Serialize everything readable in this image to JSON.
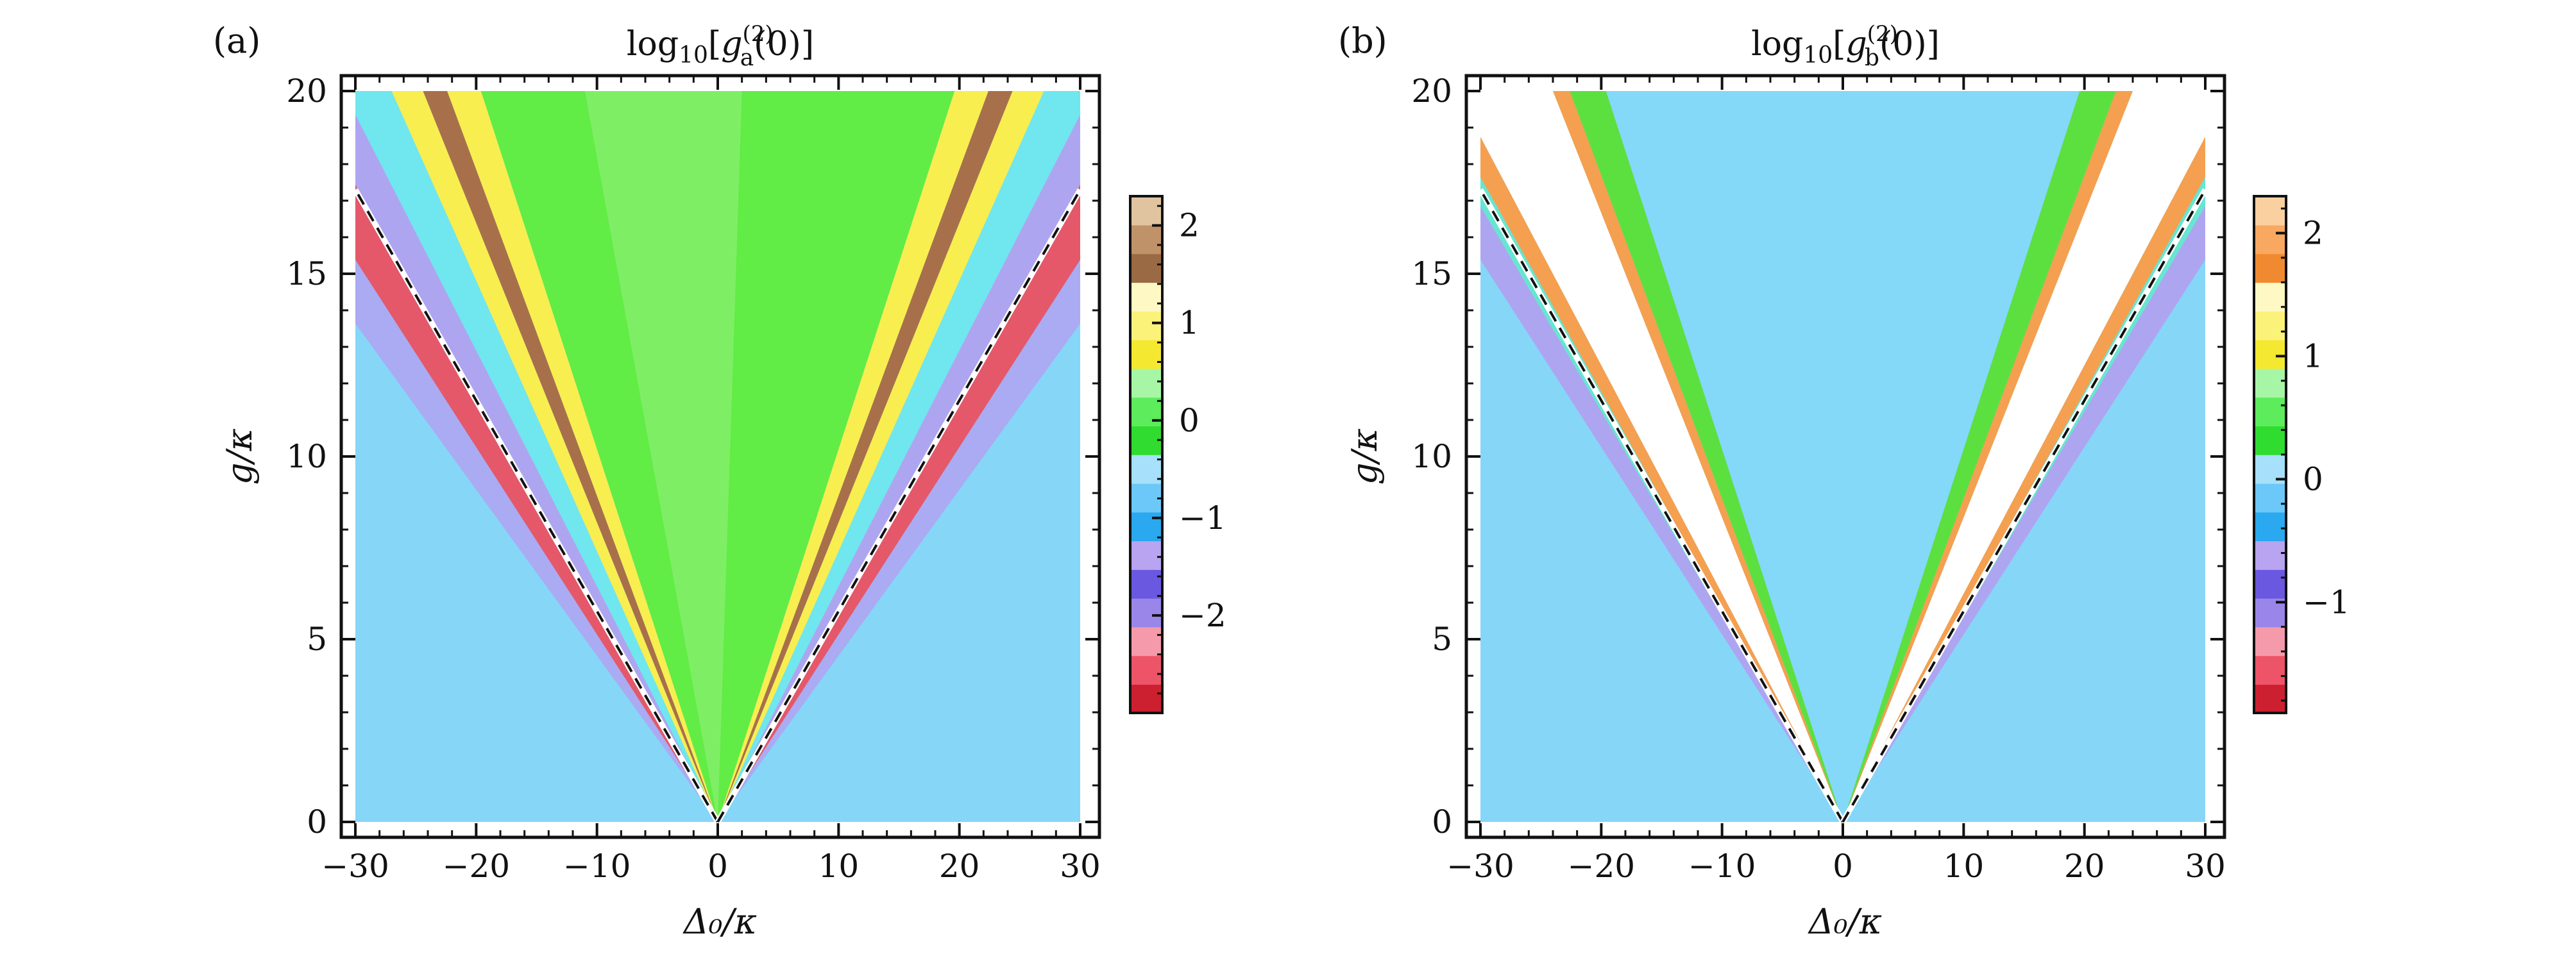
{
  "chart_data": [
    {
      "type": "heatmap",
      "panel_label": "(a)",
      "title": "log₁₀[g_a^(2)(0)]",
      "title_parts": {
        "pre": "log",
        "sub10": "10",
        "open": "[",
        "g": "g",
        "sup": "(2)",
        "sub": "a",
        "post": "(0)]"
      },
      "xlabel": "Δ₀/κ",
      "ylabel": "g/κ",
      "xlim": [
        -30,
        30
      ],
      "ylim": [
        0,
        20
      ],
      "xticks": [
        -30,
        -20,
        -10,
        0,
        10,
        20,
        30
      ],
      "xtick_labels": [
        "−30",
        "−20",
        "−10",
        "0",
        "10",
        "20",
        "30"
      ],
      "yticks": [
        0,
        5,
        10,
        15,
        20
      ],
      "ytick_labels": [
        "0",
        "5",
        "10",
        "15",
        "20"
      ],
      "dashed_lines": [
        {
          "x": [
            0,
            -30
          ],
          "y": [
            0,
            17.3
          ]
        },
        {
          "x": [
            0,
            30
          ],
          "y": [
            0,
            17.3
          ]
        }
      ],
      "colorbar": {
        "ticks": [
          2,
          1,
          0,
          -1,
          -2
        ],
        "tick_labels": [
          "2",
          "1",
          "0",
          "−1",
          "−2"
        ],
        "range": [
          -3,
          2.3
        ],
        "colors": [
          "#cc2030",
          "#ee5468",
          "#f59aaa",
          "#9a86e8",
          "#6a58e0",
          "#b8a4f0",
          "#2aa8f0",
          "#6cc8f8",
          "#a6e0fa",
          "#30dc30",
          "#5cec5c",
          "#a6f6a6",
          "#f4e830",
          "#fbf27a",
          "#fdf8c4",
          "#9a6a44",
          "#c0926a",
          "#e0c4a0"
        ]
      },
      "regions": {
        "outer": "#86d6f8",
        "band_purple": "#b59cf0",
        "band_red": "#ee4a5a",
        "yellow": "#f8ee50",
        "brown": "#a8704a",
        "center": "#62ec46"
      }
    },
    {
      "type": "heatmap",
      "panel_label": "(b)",
      "title": "log₁₀[g_b^(2)(0)]",
      "title_parts": {
        "pre": "log",
        "sub10": "10",
        "open": "[",
        "g": "g",
        "sup": "(2)",
        "sub": "b",
        "post": "(0)]"
      },
      "xlabel": "Δ₀/κ",
      "ylabel": "g/κ",
      "xlim": [
        -30,
        30
      ],
      "ylim": [
        0,
        20
      ],
      "xticks": [
        -30,
        -20,
        -10,
        0,
        10,
        20,
        30
      ],
      "xtick_labels": [
        "−30",
        "−20",
        "−10",
        "0",
        "10",
        "20",
        "30"
      ],
      "yticks": [
        0,
        5,
        10,
        15,
        20
      ],
      "ytick_labels": [
        "0",
        "5",
        "10",
        "15",
        "20"
      ],
      "dashed_lines": [
        {
          "x": [
            0,
            -30
          ],
          "y": [
            0,
            17.3
          ]
        },
        {
          "x": [
            0,
            30
          ],
          "y": [
            0,
            17.3
          ]
        }
      ],
      "colorbar": {
        "ticks": [
          2,
          1,
          0,
          -1
        ],
        "tick_labels": [
          "2",
          "1",
          "0",
          "−1"
        ],
        "range": [
          -1.9,
          2.3
        ],
        "colors": [
          "#cc2030",
          "#ee5468",
          "#f59aaa",
          "#9a86e8",
          "#6a58e0",
          "#b8a4f0",
          "#2aa8f0",
          "#6cc8f8",
          "#a6e0fa",
          "#30dc30",
          "#5cec5c",
          "#a6f6a6",
          "#f4e830",
          "#fbf27a",
          "#fdf8c4",
          "#f08a30",
          "#f8a860",
          "#fbd0a0"
        ]
      },
      "regions": {
        "outer": "#86d6f8",
        "band_purple": "#b59cf0",
        "orange": "#f4a050",
        "white": "#ffffff",
        "green": "#5ce040",
        "center": "#84d8f8"
      }
    }
  ]
}
